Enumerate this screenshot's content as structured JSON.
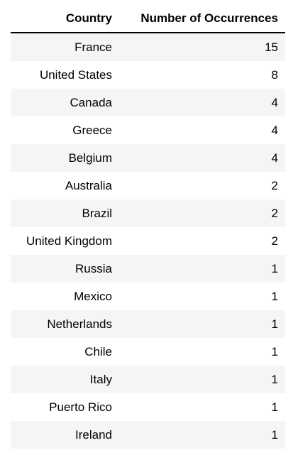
{
  "table": {
    "headers": [
      "Country",
      "Number of Occurrences"
    ],
    "rows": [
      {
        "country": "France",
        "count": "15"
      },
      {
        "country": "United States",
        "count": "8"
      },
      {
        "country": "Canada",
        "count": "4"
      },
      {
        "country": "Greece",
        "count": "4"
      },
      {
        "country": "Belgium",
        "count": "4"
      },
      {
        "country": "Australia",
        "count": "2"
      },
      {
        "country": "Brazil",
        "count": "2"
      },
      {
        "country": "United Kingdom",
        "count": "2"
      },
      {
        "country": "Russia",
        "count": "1"
      },
      {
        "country": "Mexico",
        "count": "1"
      },
      {
        "country": "Netherlands",
        "count": "1"
      },
      {
        "country": "Chile",
        "count": "1"
      },
      {
        "country": "Italy",
        "count": "1"
      },
      {
        "country": "Puerto Rico",
        "count": "1"
      },
      {
        "country": "Ireland",
        "count": "1"
      }
    ]
  },
  "colors": {
    "row_stripe": "#f5f5f5",
    "header_rule": "#000000"
  }
}
